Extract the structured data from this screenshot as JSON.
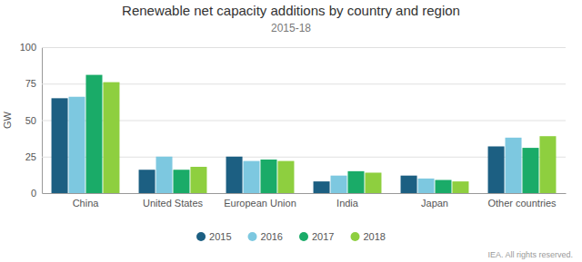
{
  "chart_data": {
    "type": "bar",
    "title": "Renewable net capacity additions by country and region",
    "subtitle": "2015-18",
    "ylabel": "GW",
    "categories": [
      "China",
      "United States",
      "European Union",
      "India",
      "Japan",
      "Other countries"
    ],
    "series": [
      {
        "name": "2015",
        "color": "#1c5f82",
        "values": [
          65,
          16,
          25,
          8,
          12,
          32
        ]
      },
      {
        "name": "2016",
        "color": "#7dc8e0",
        "values": [
          66,
          25,
          22,
          12,
          10,
          38
        ]
      },
      {
        "name": "2017",
        "color": "#1aab68",
        "values": [
          81,
          16,
          23,
          15,
          9,
          31
        ]
      },
      {
        "name": "2018",
        "color": "#8ecf3f",
        "values": [
          76,
          18,
          22,
          14,
          8,
          39
        ]
      }
    ],
    "ylim": [
      0,
      100
    ],
    "yticks": [
      0,
      25,
      50,
      75,
      100
    ],
    "grid": true,
    "legend": "bottom",
    "annotations": [
      "IEA. All rights reserved."
    ]
  }
}
